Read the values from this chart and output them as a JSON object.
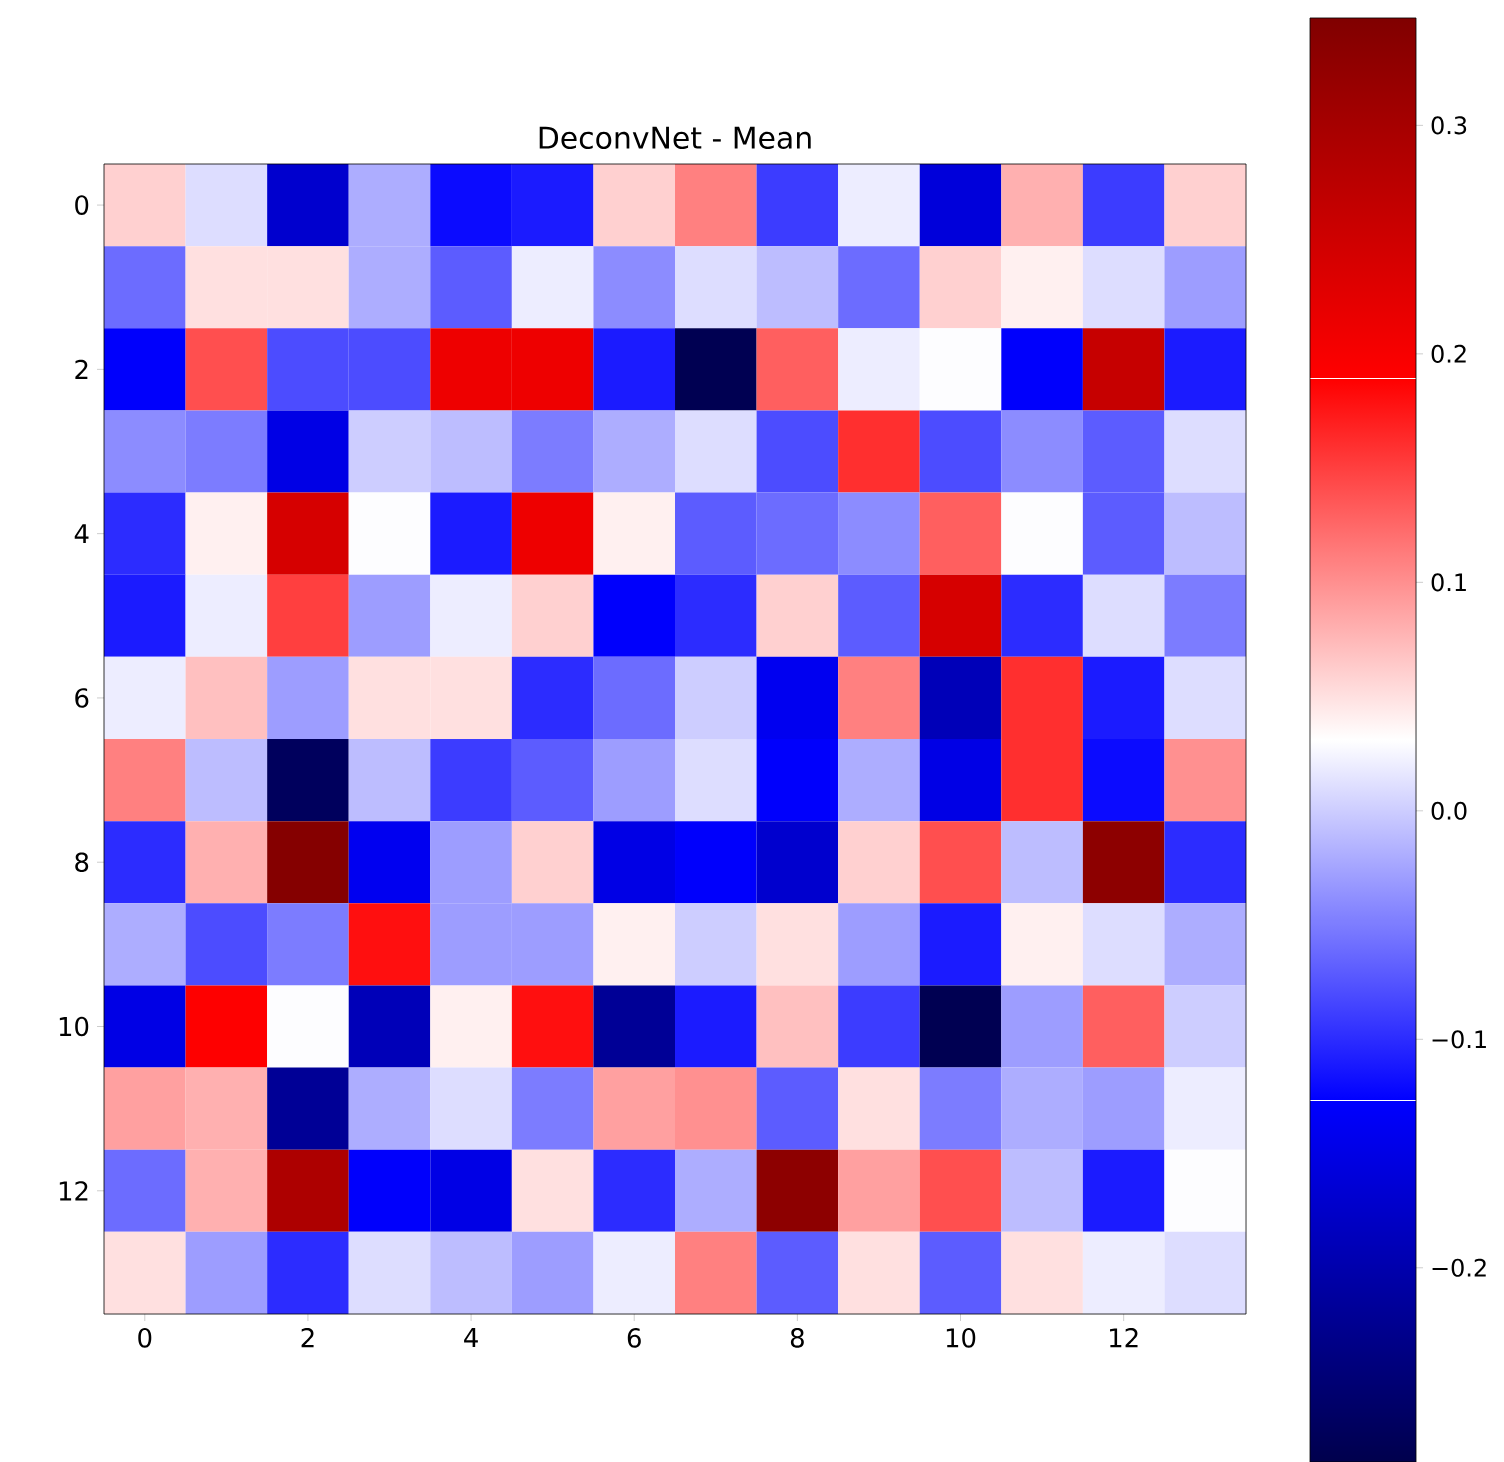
{
  "chart_data": {
    "type": "heatmap",
    "title": "DeconvNet - Mean",
    "categories": [
      "0",
      null,
      "2",
      null,
      "4",
      null,
      "6",
      null,
      "8",
      null,
      "10",
      null,
      "12",
      null
    ],
    "y_categories": [
      "0",
      null,
      "2",
      null,
      "4",
      null,
      "6",
      null,
      "8",
      null,
      "10",
      null,
      "12",
      null
    ],
    "cells": [
      [
        0.06,
        0.01,
        -0.17,
        -0.02,
        -0.12,
        -0.11,
        0.06,
        0.11,
        -0.09,
        0.02,
        -0.16,
        0.08,
        -0.09,
        0.06
      ],
      [
        -0.06,
        0.05,
        0.05,
        -0.02,
        -0.07,
        0.02,
        -0.04,
        0.01,
        -0.01,
        -0.06,
        0.06,
        0.04,
        0.01,
        -0.03
      ],
      [
        -0.13,
        0.14,
        -0.08,
        -0.08,
        0.21,
        0.21,
        -0.11,
        -0.28,
        0.13,
        0.02,
        0.03,
        -0.13,
        0.26,
        -0.11
      ],
      [
        -0.04,
        -0.05,
        -0.15,
        0.0,
        -0.01,
        -0.05,
        -0.02,
        0.01,
        -0.08,
        0.16,
        -0.08,
        -0.04,
        -0.07,
        0.01
      ],
      [
        -0.1,
        0.04,
        0.24,
        0.03,
        -0.11,
        0.21,
        0.04,
        -0.07,
        -0.06,
        -0.04,
        0.13,
        0.03,
        -0.07,
        -0.01
      ],
      [
        -0.11,
        0.02,
        0.15,
        -0.03,
        0.02,
        0.06,
        -0.13,
        -0.1,
        0.06,
        -0.07,
        0.24,
        -0.1,
        0.01,
        -0.05
      ],
      [
        0.02,
        0.07,
        -0.03,
        0.05,
        0.05,
        -0.1,
        -0.06,
        0.0,
        -0.14,
        0.11,
        -0.19,
        0.16,
        -0.11,
        0.01
      ],
      [
        0.11,
        -0.01,
        -0.27,
        -0.01,
        -0.09,
        -0.07,
        -0.03,
        0.01,
        -0.13,
        -0.02,
        -0.15,
        0.16,
        -0.12,
        0.1
      ],
      [
        -0.1,
        0.08,
        0.34,
        -0.14,
        -0.03,
        0.06,
        -0.15,
        -0.13,
        -0.17,
        0.06,
        0.14,
        -0.01,
        0.33,
        -0.1
      ],
      [
        -0.02,
        -0.08,
        -0.05,
        0.18,
        -0.03,
        -0.03,
        0.04,
        0.0,
        0.05,
        -0.03,
        -0.11,
        0.04,
        0.01,
        -0.02
      ],
      [
        -0.15,
        0.19,
        0.03,
        -0.19,
        0.04,
        0.18,
        -0.22,
        -0.11,
        0.07,
        -0.09,
        -0.28,
        -0.03,
        0.13,
        0.0
      ],
      [
        0.09,
        0.08,
        -0.22,
        -0.02,
        0.01,
        -0.05,
        0.09,
        0.1,
        -0.07,
        0.05,
        -0.05,
        -0.02,
        -0.03,
        0.02
      ],
      [
        -0.06,
        0.08,
        0.29,
        -0.13,
        -0.15,
        0.05,
        -0.1,
        -0.02,
        0.33,
        0.09,
        0.14,
        -0.01,
        -0.11,
        0.03
      ],
      [
        0.05,
        -0.03,
        -0.1,
        0.01,
        -0.01,
        -0.03,
        0.02,
        0.11,
        -0.07,
        0.05,
        -0.07,
        0.05,
        0.02,
        0.01
      ]
    ],
    "clim": [
      -0.285,
      0.347
    ],
    "cticks": [
      {
        "value": -0.2,
        "label": "−0.2"
      },
      {
        "value": -0.1,
        "label": "−0.1"
      },
      {
        "value": 0.0,
        "label": "0.0"
      },
      0.1,
      0.2,
      0.3
    ]
  }
}
